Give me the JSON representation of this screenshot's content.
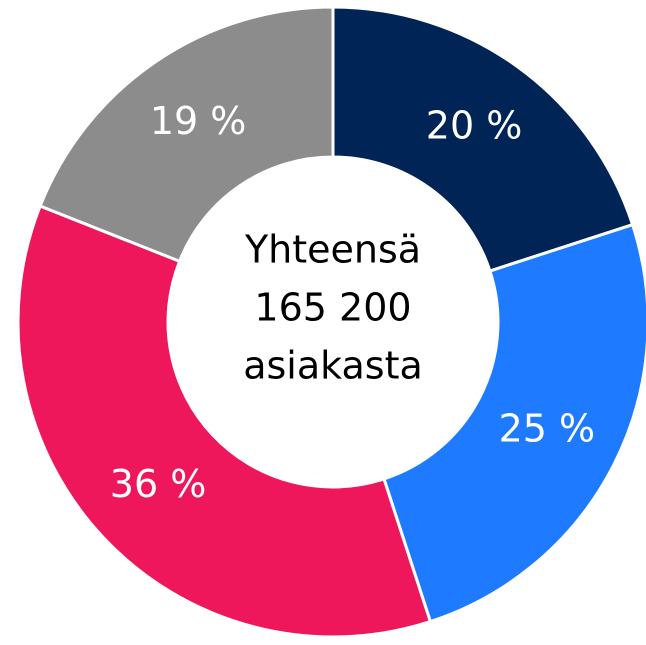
{
  "chart_data": {
    "type": "donut",
    "values": [
      20,
      25,
      36,
      19
    ],
    "value_labels": [
      "20 %",
      "25 %",
      "36 %",
      "19 %"
    ],
    "colors": [
      "#002456",
      "#1e7bff",
      "#ee175c",
      "#8c8c8c"
    ],
    "center_text": [
      "Yhteensä",
      "165 200",
      "asiakasta"
    ]
  }
}
